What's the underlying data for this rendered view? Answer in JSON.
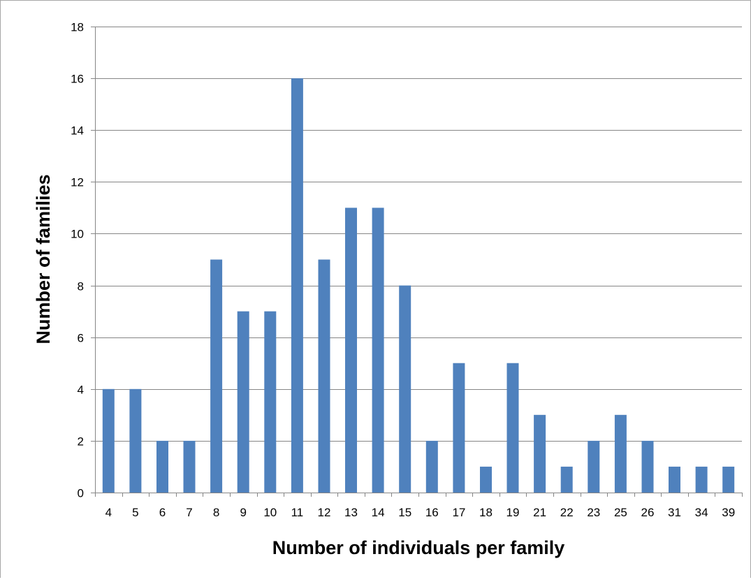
{
  "chart_data": {
    "type": "bar",
    "title": "",
    "xlabel": "Number of individuals per family",
    "ylabel": "Number of families",
    "categories": [
      "4",
      "5",
      "6",
      "7",
      "8",
      "9",
      "10",
      "11",
      "12",
      "13",
      "14",
      "15",
      "16",
      "17",
      "18",
      "19",
      "21",
      "22",
      "23",
      "25",
      "26",
      "31",
      "34",
      "39"
    ],
    "values": [
      4,
      4,
      2,
      2,
      9,
      7,
      7,
      16,
      9,
      11,
      11,
      8,
      2,
      5,
      1,
      5,
      3,
      1,
      2,
      3,
      2,
      1,
      1,
      1
    ],
    "ylim": [
      0,
      18
    ],
    "yticks": [
      0,
      2,
      4,
      6,
      8,
      10,
      12,
      14,
      16,
      18
    ],
    "grid": true,
    "legend": "none",
    "bar_color": "#4f81bd",
    "grid_color": "#868686"
  }
}
